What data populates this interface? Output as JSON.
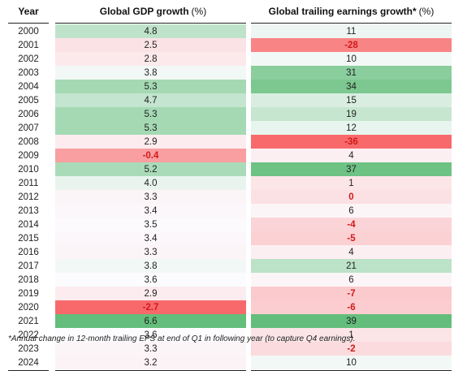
{
  "headers": {
    "year": "Year",
    "gdp": "Global GDP growth",
    "gdp_unit": "(%)",
    "earnings": "Global trailing earnings growth*",
    "earnings_unit": "(%)"
  },
  "rows": [
    {
      "year": "2000",
      "gdp": "4.8",
      "eps": "11"
    },
    {
      "year": "2001",
      "gdp": "2.5",
      "eps": "-28"
    },
    {
      "year": "2002",
      "gdp": "2.8",
      "eps": "10"
    },
    {
      "year": "2003",
      "gdp": "3.8",
      "eps": "31"
    },
    {
      "year": "2004",
      "gdp": "5.3",
      "eps": "34"
    },
    {
      "year": "2005",
      "gdp": "4.7",
      "eps": "15"
    },
    {
      "year": "2006",
      "gdp": "5.3",
      "eps": "19"
    },
    {
      "year": "2007",
      "gdp": "5.3",
      "eps": "12"
    },
    {
      "year": "2008",
      "gdp": "2.9",
      "eps": "-36"
    },
    {
      "year": "2009",
      "gdp": "-0.4",
      "eps": "4"
    },
    {
      "year": "2010",
      "gdp": "5.2",
      "eps": "37"
    },
    {
      "year": "2011",
      "gdp": "4.0",
      "eps": "1"
    },
    {
      "year": "2012",
      "gdp": "3.3",
      "eps": "0"
    },
    {
      "year": "2013",
      "gdp": "3.4",
      "eps": "6"
    },
    {
      "year": "2014",
      "gdp": "3.5",
      "eps": "-4"
    },
    {
      "year": "2015",
      "gdp": "3.4",
      "eps": "-5"
    },
    {
      "year": "2016",
      "gdp": "3.3",
      "eps": "4"
    },
    {
      "year": "2017",
      "gdp": "3.8",
      "eps": "21"
    },
    {
      "year": "2018",
      "gdp": "3.6",
      "eps": "6"
    },
    {
      "year": "2019",
      "gdp": "2.9",
      "eps": "-7"
    },
    {
      "year": "2020",
      "gdp": "-2.7",
      "eps": "-6"
    },
    {
      "year": "2021",
      "gdp": "6.6",
      "eps": "39"
    },
    {
      "year": "2022",
      "gdp": "3.6",
      "eps": "1"
    },
    {
      "year": "2023",
      "gdp": "3.3",
      "eps": "-2"
    },
    {
      "year": "2024",
      "gdp": "3.2",
      "eps": "10"
    }
  ],
  "red_text_values": [
    "-28",
    "-36",
    "-0.4",
    "0",
    "-4",
    "-5",
    "-7",
    "-2.7",
    "-6",
    "-2"
  ],
  "colors": {
    "heat_green": "#63be7b",
    "heat_white": "#fcfcff",
    "heat_red": "#f8696b",
    "negative_text": "#d11a1a"
  },
  "footnote": "*Annual change in 12-month trailing EPS at end of Q1 in following year (to capture Q4 earnings)."
}
